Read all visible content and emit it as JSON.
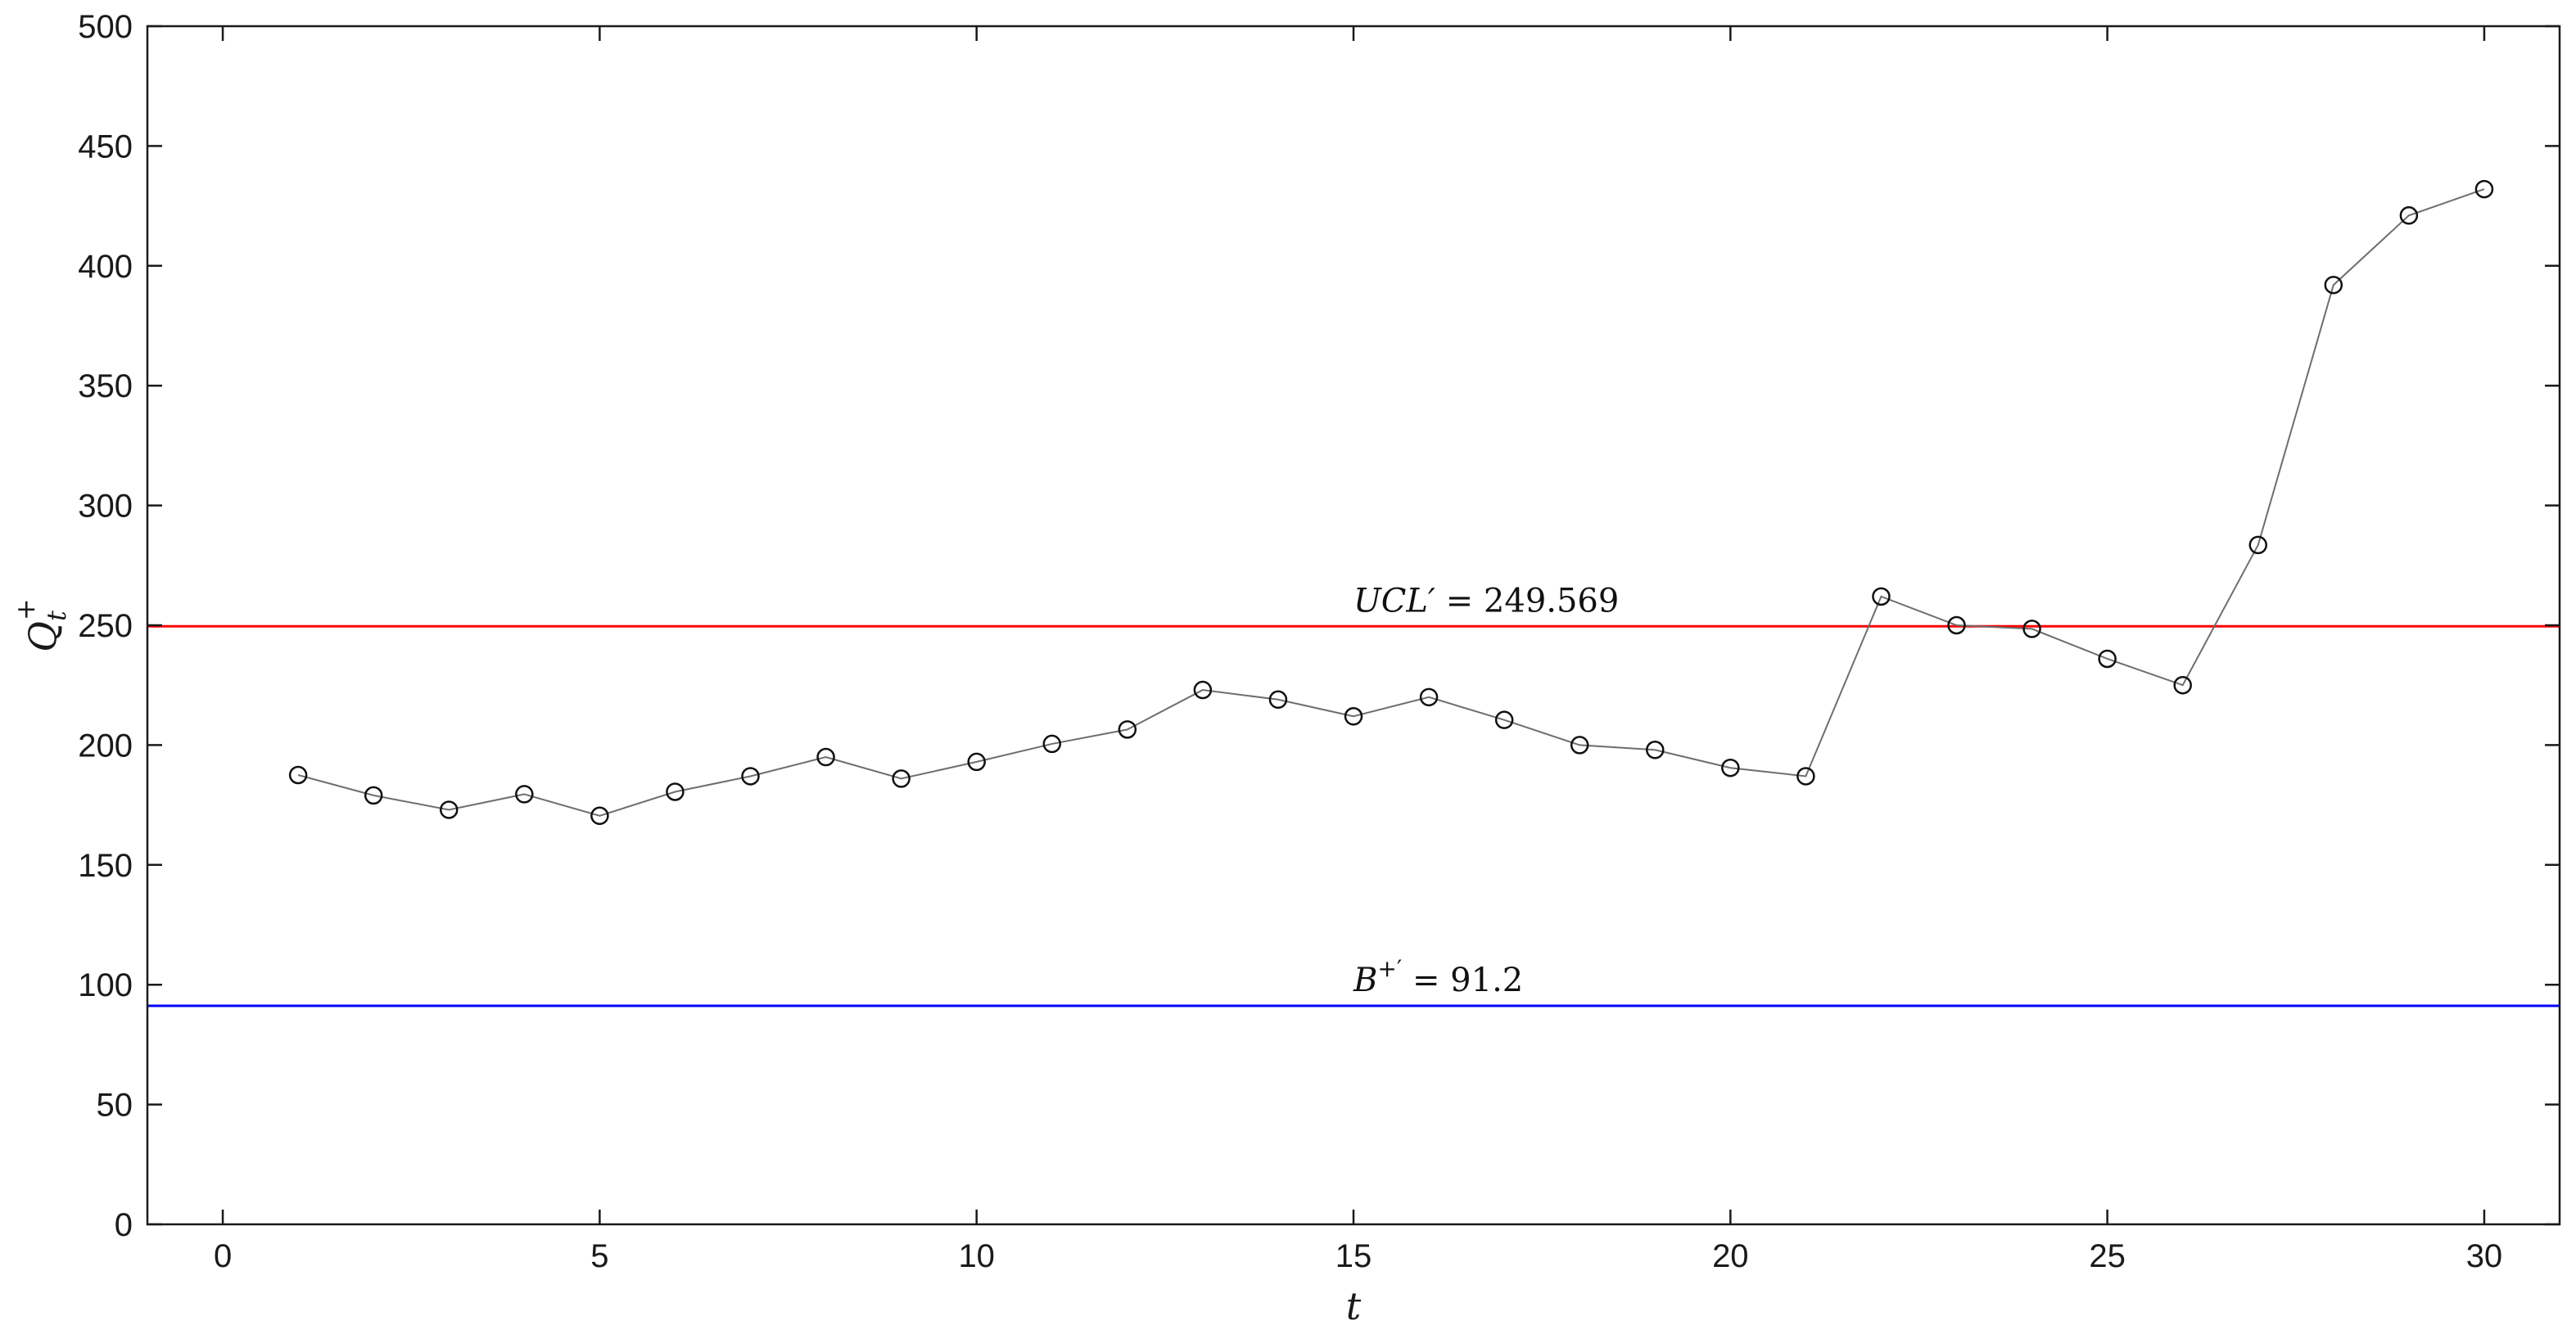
{
  "chart_data": {
    "type": "line",
    "x": [
      1,
      2,
      3,
      4,
      5,
      6,
      7,
      8,
      9,
      10,
      11,
      12,
      13,
      14,
      15,
      16,
      17,
      18,
      19,
      20,
      21,
      22,
      23,
      24,
      25,
      26,
      27,
      28,
      29,
      30
    ],
    "series": [
      {
        "values": [
          187.5,
          179,
          173,
          179.5,
          170.5,
          180.5,
          187,
          195,
          186,
          193,
          200.5,
          206.5,
          223,
          219,
          212,
          220,
          210.5,
          200,
          198,
          190.5,
          187,
          262,
          250,
          248.5,
          236,
          225,
          283.5,
          392,
          421,
          432
        ],
        "color": "#6e6e6e",
        "marker": "circle"
      }
    ],
    "reference_lines": [
      {
        "value": 249.569,
        "color": "#ff0000",
        "label": "= 249.569",
        "symbol": "UCL′"
      },
      {
        "value": 91.2,
        "color": "#0000ff",
        "label": "= 91.2",
        "symbol": "B",
        "symbol_sup": "+′"
      }
    ],
    "xlabel": "t",
    "ylabel": "Q",
    "ylabel_sub": "t",
    "ylabel_sup": "+",
    "xlim": [
      -1,
      31
    ],
    "ylim": [
      0,
      500
    ],
    "xticks": [
      0,
      5,
      10,
      15,
      20,
      25,
      30
    ],
    "yticks": [
      0,
      50,
      100,
      150,
      200,
      250,
      300,
      350,
      400,
      450,
      500
    ],
    "grid": false
  }
}
